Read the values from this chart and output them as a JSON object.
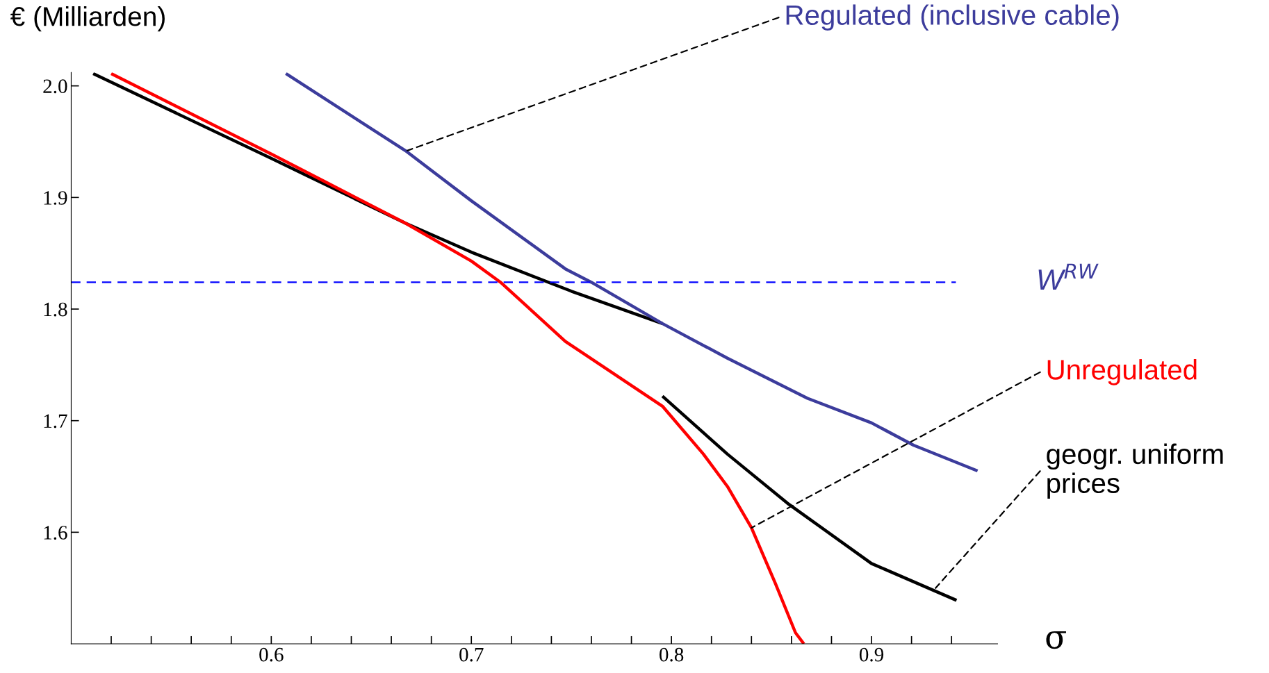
{
  "chart_data": {
    "type": "line",
    "xlabel": "σ",
    "ylabel": "€ (Milliarden)",
    "xlim": [
      0.5,
      0.963
    ],
    "ylim": [
      1.5,
      2.012
    ],
    "xticks": [
      {
        "value": 0.52,
        "label": null
      },
      {
        "value": 0.54,
        "label": null
      },
      {
        "value": 0.56,
        "label": null
      },
      {
        "value": 0.58,
        "label": null
      },
      0.6,
      {
        "value": 0.62,
        "label": null
      },
      {
        "value": 0.64,
        "label": null
      },
      {
        "value": 0.66,
        "label": null
      },
      {
        "value": 0.68,
        "label": null
      },
      0.7,
      {
        "value": 0.72,
        "label": null
      },
      {
        "value": 0.74,
        "label": null
      },
      {
        "value": 0.76,
        "label": null
      },
      {
        "value": 0.78,
        "label": null
      },
      0.8,
      {
        "value": 0.82,
        "label": null
      },
      {
        "value": 0.84,
        "label": null
      },
      {
        "value": 0.86,
        "label": null
      },
      {
        "value": 0.88,
        "label": null
      },
      0.9,
      {
        "value": 0.92,
        "label": null
      },
      {
        "value": 0.94,
        "label": null
      }
    ],
    "yticks": [
      1.6,
      1.7,
      1.8,
      1.9,
      {
        "value": 2.0,
        "label": "2.0"
      }
    ],
    "grid": false,
    "marker": "none",
    "line_style": "solid",
    "series": [
      {
        "color": "#000000",
        "x": [
          0.511,
          0.6,
          0.667,
          0.7,
          0.75,
          0.7955
        ],
        "values": [
          2.011,
          1.935,
          1.877,
          1.851,
          1.816,
          1.787
        ]
      },
      {
        "color": "#000000",
        "x": [
          0.7955,
          0.828,
          0.858,
          0.9,
          0.9425
        ],
        "values": [
          1.722,
          1.67,
          1.626,
          1.572,
          1.539
        ]
      },
      {
        "color": "#ff0000",
        "x": [
          0.52,
          0.6,
          0.667,
          0.7,
          0.7146,
          0.747,
          0.7955,
          0.816,
          0.828,
          0.84,
          0.852,
          0.862,
          0.8662
        ],
        "values": [
          2.011,
          1.939,
          1.877,
          1.843,
          1.824,
          1.771,
          1.713,
          1.67,
          1.641,
          1.604,
          1.554,
          1.51,
          1.5
        ]
      },
      {
        "color": "#3c3c9c",
        "x": [
          0.6073,
          0.667,
          0.7,
          0.747,
          0.76,
          0.7955,
          0.828,
          0.868,
          0.9,
          0.921,
          0.953
        ],
        "values": [
          2.011,
          1.942,
          1.897,
          1.836,
          1.824,
          1.787,
          1.756,
          1.72,
          1.698,
          1.678,
          1.655
        ]
      }
    ],
    "ref_lines": [
      {
        "axis": "y",
        "value": 1.824,
        "label": "W$^{RW}$",
        "color": "#0000ff",
        "line_style": "dashed"
      }
    ],
    "annotations": [
      {
        "text": "Regulated (inclusive cable)",
        "x": 0.668,
        "y": 1.942
      },
      {
        "text": "Unregulated",
        "x": 0.84,
        "y": 1.604
      },
      {
        "text": "geogr. uniform\nprices",
        "x": 0.932,
        "y": 1.55
      }
    ]
  }
}
